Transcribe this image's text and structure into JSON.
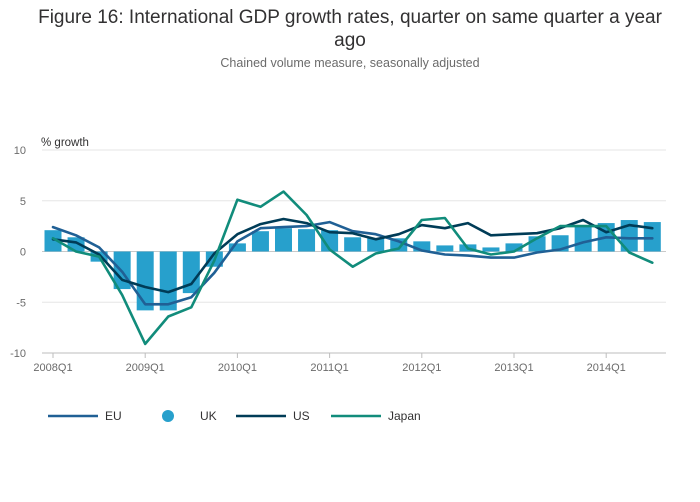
{
  "title_lines": [
    "Figure 16: International GDP growth rates, quarter on same quarter a year",
    "ago"
  ],
  "subtitle": "Chained volume measure, seasonally adjusted",
  "chart_data": {
    "type": "bar",
    "title": "Figure 16: International GDP growth rates, quarter on same quarter a year ago",
    "subtitle": "Chained volume measure, seasonally adjusted",
    "ylabel": "% growth",
    "xlabel": "",
    "ylim": [
      -10,
      10
    ],
    "yticks": [
      10,
      5,
      0,
      -5,
      -10
    ],
    "grid": true,
    "legend_position": "bottom",
    "x_tick_labels": [
      "2008Q1",
      "2009Q1",
      "2010Q1",
      "2011Q1",
      "2012Q1",
      "2013Q1",
      "2014Q1"
    ],
    "categories": [
      "2008Q1",
      "2008Q2",
      "2008Q3",
      "2008Q4",
      "2009Q1",
      "2009Q2",
      "2009Q3",
      "2009Q4",
      "2010Q1",
      "2010Q2",
      "2010Q3",
      "2010Q4",
      "2011Q1",
      "2011Q2",
      "2011Q3",
      "2011Q4",
      "2012Q1",
      "2012Q2",
      "2012Q3",
      "2012Q4",
      "2013Q1",
      "2013Q2",
      "2013Q3",
      "2013Q4",
      "2014Q1",
      "2014Q2",
      "2014Q3"
    ],
    "series": [
      {
        "name": "EU",
        "type": "line",
        "color": "#206095",
        "values": [
          2.4,
          1.6,
          0.4,
          -2.0,
          -5.2,
          -5.2,
          -4.5,
          -2.1,
          1.0,
          2.3,
          2.4,
          2.5,
          2.9,
          2.0,
          1.7,
          1.0,
          0.1,
          -0.3,
          -0.4,
          -0.6,
          -0.6,
          -0.1,
          0.2,
          0.9,
          1.4,
          1.3,
          1.3
        ]
      },
      {
        "name": "UK",
        "type": "bar",
        "color": "#27a0cc",
        "values": [
          2.1,
          1.4,
          -1.0,
          -3.7,
          -5.8,
          -5.8,
          -4.1,
          -1.5,
          0.8,
          2.0,
          2.3,
          2.2,
          2.1,
          1.4,
          1.3,
          1.3,
          1.0,
          0.6,
          0.7,
          0.4,
          0.8,
          1.5,
          1.6,
          2.6,
          2.8,
          3.1,
          2.9
        ]
      },
      {
        "name": "US",
        "type": "line",
        "color": "#003c57",
        "values": [
          1.2,
          0.9,
          -0.3,
          -2.8,
          -3.5,
          -4.0,
          -3.2,
          -0.2,
          1.7,
          2.7,
          3.2,
          2.8,
          1.9,
          1.8,
          1.2,
          1.7,
          2.6,
          2.3,
          2.8,
          1.6,
          1.7,
          1.8,
          2.3,
          3.1,
          1.9,
          2.6,
          2.3
        ]
      },
      {
        "name": "Japan",
        "type": "line",
        "color": "#118c7b",
        "values": [
          1.3,
          0.0,
          -0.5,
          -4.3,
          -9.1,
          -6.4,
          -5.5,
          -0.9,
          5.1,
          4.4,
          5.9,
          3.6,
          0.2,
          -1.5,
          -0.2,
          0.3,
          3.1,
          3.3,
          0.3,
          -0.3,
          0.0,
          1.3,
          2.5,
          2.5,
          2.5,
          -0.1,
          -1.1
        ]
      }
    ],
    "legend": [
      "EU",
      "UK",
      "US",
      "Japan"
    ]
  }
}
